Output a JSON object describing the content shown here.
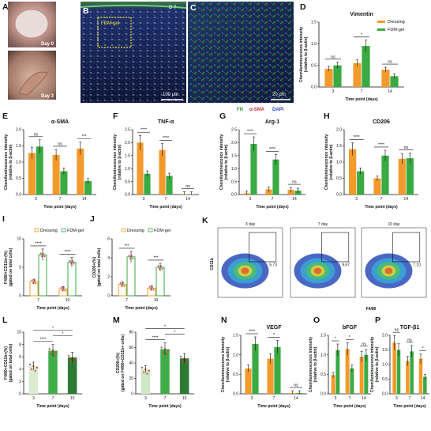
{
  "colors": {
    "dressing": "#f39a2d",
    "fdm": "#3aaa43",
    "fdm_dark": "#2f8a36",
    "l_pale": "#d9ecd2",
    "l_mid": "#41ad4a",
    "l_dark": "#2c7a34",
    "m_pale": "#cfe9c8"
  },
  "labels": {
    "A": "A",
    "B": "B",
    "C": "C",
    "D": "D",
    "E": "E",
    "F": "F",
    "G": "G",
    "H": "H",
    "I": "I",
    "J": "J",
    "K": "K",
    "L": "L",
    "M": "M",
    "N": "N",
    "O": "O",
    "P": "P"
  },
  "images": {
    "A_day0": "Day 0",
    "A_day3": "Day 3",
    "B_tag": "D 7",
    "B_box": "FDM-gel",
    "B_scale": "100 μm",
    "C_scale": "20 μm",
    "C_fn": "FN",
    "C_sma": "α-SMA",
    "C_dapi": "DAPI"
  },
  "legend_top": {
    "dressing": "Dressing",
    "fdm": "FDM-gel"
  },
  "legend_small": {
    "dressing": "Dressing",
    "fdm": "FDM-gel"
  },
  "ylabel_chemi": "Chemiluminescence intensity",
  "ylabel_chemi2": "(relative to β-actin)",
  "xlabel_time": "Time point (days)",
  "flow": {
    "ylabel": "CD11b",
    "xlabel": "F4/80",
    "panels": [
      {
        "title": "3 day",
        "value": "5.73"
      },
      {
        "title": "7 day",
        "value": "9.67"
      },
      {
        "title": "10 day",
        "value": "7.10"
      }
    ]
  },
  "chart_data": [
    {
      "id": "D",
      "type": "bar",
      "title": "Vimentin",
      "categories": [
        "3",
        "7",
        "14"
      ],
      "ylim": [
        0,
        1.5
      ],
      "yticks": [
        "0.0",
        "0.5",
        "1.0",
        "1.5"
      ],
      "series": [
        {
          "name": "Dressing",
          "values": [
            0.42,
            0.55,
            0.4
          ]
        },
        {
          "name": "FDM-gel",
          "values": [
            0.5,
            0.95,
            0.25
          ]
        }
      ],
      "sig": [
        "ns",
        "*",
        "ns"
      ]
    },
    {
      "id": "E",
      "type": "bar",
      "title": "α-SMA",
      "categories": [
        "3",
        "7",
        "14"
      ],
      "ylim": [
        0,
        2.0
      ],
      "yticks": [
        "0.0",
        "0.5",
        "1.0",
        "1.5",
        "2.0"
      ],
      "series": [
        {
          "name": "Dressing",
          "values": [
            1.28,
            1.22,
            1.42
          ]
        },
        {
          "name": "FDM-gel",
          "values": [
            1.48,
            0.72,
            0.42
          ]
        }
      ],
      "sig": [
        "ns",
        "ns",
        "***"
      ]
    },
    {
      "id": "F",
      "type": "bar",
      "title": "TNF-α",
      "categories": [
        "3",
        "7",
        "14"
      ],
      "ylim": [
        0,
        2.5
      ],
      "yticks": [
        "0.0",
        "0.5",
        "1.0",
        "1.5",
        "2.0",
        "2.5"
      ],
      "series": [
        {
          "name": "Dressing",
          "values": [
            2.0,
            1.72,
            0.02
          ]
        },
        {
          "name": "FDM-gel",
          "values": [
            0.8,
            0.72,
            0.01
          ]
        }
      ],
      "sig": [
        "****",
        "****",
        "ns"
      ]
    },
    {
      "id": "G",
      "type": "bar",
      "title": "Arg-1",
      "categories": [
        "3",
        "7",
        "14"
      ],
      "ylim": [
        0,
        2.5
      ],
      "yticks": [
        "0.0",
        "0.5",
        "1.0",
        "1.5",
        "2.0",
        "2.5"
      ],
      "series": [
        {
          "name": "Dressing",
          "values": [
            0.05,
            0.2,
            0.18
          ]
        },
        {
          "name": "FDM-gel",
          "values": [
            1.95,
            1.35,
            0.15
          ]
        }
      ],
      "sig": [
        "****",
        "****",
        "ns"
      ]
    },
    {
      "id": "H",
      "type": "bar",
      "title": "CD206",
      "categories": [
        "3",
        "7",
        "14"
      ],
      "ylim": [
        0,
        2.0
      ],
      "yticks": [
        "0.0",
        "0.5",
        "1.0",
        "1.5",
        "2.0"
      ],
      "series": [
        {
          "name": "Dressing",
          "values": [
            1.4,
            0.5,
            1.1
          ]
        },
        {
          "name": "FDM-gel",
          "values": [
            0.72,
            1.2,
            1.12
          ]
        }
      ],
      "sig": [
        "****",
        "****",
        "ns"
      ]
    },
    {
      "id": "I",
      "type": "bar",
      "title": "",
      "ylabel": "F4/80+CD11b+(%)",
      "ylabel2": "(gated on total cells)",
      "categories": [
        "7",
        "10"
      ],
      "ylim": [
        0,
        10
      ],
      "yticks": [
        "0",
        "5",
        "10"
      ],
      "series": [
        {
          "name": "Dressing",
          "values": [
            2.5,
            1.2
          ]
        },
        {
          "name": "FDM-gel",
          "values": [
            7.2,
            5.9
          ]
        }
      ],
      "sig": [
        "****",
        "****"
      ]
    },
    {
      "id": "J",
      "type": "bar",
      "title": "",
      "ylabel": "CD206+(%)",
      "ylabel2": "(gated on total cells)",
      "categories": [
        "7",
        "10"
      ],
      "ylim": [
        0,
        6
      ],
      "yticks": [
        "0",
        "2",
        "4",
        "6"
      ],
      "series": [
        {
          "name": "Dressing",
          "values": [
            1.2,
            0.8
          ]
        },
        {
          "name": "FDM-gel",
          "values": [
            4.1,
            3.0
          ]
        }
      ],
      "sig": [
        "***",
        "***"
      ]
    },
    {
      "id": "L",
      "type": "bar",
      "title": "",
      "ylabel": "F4/80+CD11b+(%)",
      "ylabel2": "(gated on total cells)",
      "categories": [
        "3",
        "7",
        "10"
      ],
      "ylim": [
        0,
        10
      ],
      "yticks": [
        "0",
        "2",
        "4",
        "6",
        "8",
        "10"
      ],
      "series": [
        {
          "name": "",
          "values": [
            4.5,
            7.0,
            5.9
          ]
        }
      ],
      "sig_pairs": [
        [
          "3",
          "7",
          "****"
        ],
        [
          "7",
          "10",
          "*"
        ],
        [
          "3",
          "10",
          "*"
        ]
      ]
    },
    {
      "id": "M",
      "type": "bar",
      "title": "",
      "ylabel": "CD206+(%)",
      "ylabel2": "(gated on F4/80+CD11b+ cells)",
      "categories": [
        "3",
        "7",
        "10"
      ],
      "ylim": [
        0,
        80
      ],
      "yticks": [
        "0",
        "20",
        "40",
        "60",
        "80"
      ],
      "series": [
        {
          "name": "",
          "values": [
            32,
            58,
            46
          ]
        }
      ],
      "sig_pairs": [
        [
          "3",
          "7",
          "****"
        ],
        [
          "7",
          "10",
          "*"
        ],
        [
          "3",
          "10",
          "*"
        ]
      ]
    },
    {
      "id": "N",
      "type": "bar",
      "title": "VEGF",
      "categories": [
        "3",
        "7",
        "14"
      ],
      "ylim": [
        0,
        1.5
      ],
      "yticks": [
        "0.0",
        "0.5",
        "1.0",
        "1.5"
      ],
      "series": [
        {
          "name": "Dressing",
          "values": [
            0.65,
            0.9,
            0.02
          ]
        },
        {
          "name": "FDM-gel",
          "values": [
            1.28,
            1.2,
            0.02
          ]
        }
      ],
      "sig": [
        "****",
        "*",
        "ns"
      ]
    },
    {
      "id": "O",
      "type": "bar",
      "title": "bFGF",
      "categories": [
        "3",
        "7",
        "14"
      ],
      "ylim": [
        0,
        1.5
      ],
      "yticks": [
        "0.0",
        "0.5",
        "1.0",
        "1.5"
      ],
      "series": [
        {
          "name": "Dressing",
          "values": [
            0.48,
            1.15,
            0.95
          ]
        },
        {
          "name": "FDM-gel",
          "values": [
            1.12,
            0.65,
            1.0
          ]
        }
      ],
      "sig": [
        "*",
        "*",
        "ns"
      ]
    },
    {
      "id": "P",
      "type": "bar",
      "title": "TGF-β1",
      "categories": [
        "3",
        "7",
        "14"
      ],
      "ylim": [
        0,
        2.0
      ],
      "yticks": [
        "0.0",
        "0.5",
        "1.0",
        "1.5",
        "2.0"
      ],
      "series": [
        {
          "name": "Dressing",
          "values": [
            1.75,
            1.12,
            1.2
          ]
        },
        {
          "name": "FDM-gel",
          "values": [
            1.5,
            1.45,
            0.58
          ]
        }
      ],
      "sig": [
        "ns",
        "ns",
        "*"
      ]
    }
  ]
}
